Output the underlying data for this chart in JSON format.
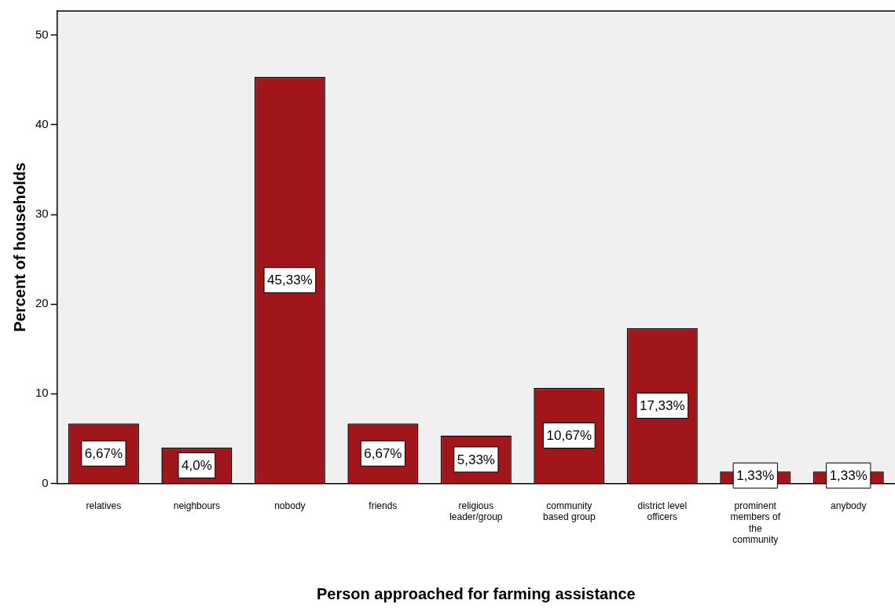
{
  "chart_data": {
    "type": "bar",
    "xlabel": "Person approached for farming assistance",
    "ylabel": "Percent of households",
    "categories": [
      "relatives",
      "neighbours",
      "nobody",
      "friends",
      "religious leader/group",
      "community based group",
      "district level officers",
      "prominent members of the community",
      "anybody"
    ],
    "values": [
      6.67,
      4.0,
      45.33,
      6.67,
      5.33,
      10.67,
      17.33,
      1.33,
      1.33
    ],
    "value_labels": [
      "6,67%",
      "4,0%",
      "45,33%",
      "6,67%",
      "5,33%",
      "10,67%",
      "17,33%",
      "1,33%",
      "1,33%"
    ],
    "color": "#a0161a",
    "ylim": [
      0,
      52.7
    ],
    "yticks": [
      0,
      10,
      20,
      30,
      40,
      50
    ],
    "grid": false,
    "legend": false
  }
}
